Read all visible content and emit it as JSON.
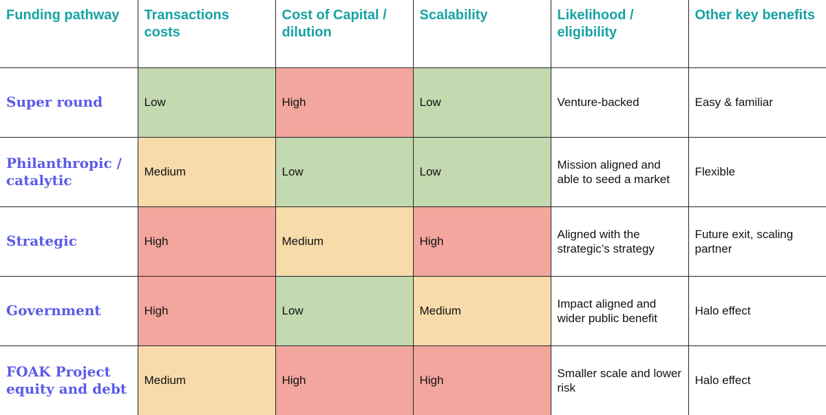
{
  "colors": {
    "header_text": "#17a2a2",
    "row_label_text": "#5b5be8",
    "low": "#c3d9b0",
    "medium": "#f7dbab",
    "high": "#f3a69d"
  },
  "headers": [
    "Funding pathway",
    "Transactions costs",
    "Cost of Capital / dilution",
    "Scalability",
    "Likelihood / eligibility",
    "Other key benefits"
  ],
  "rows": [
    {
      "label": "Super round",
      "transaction_costs": "Low",
      "cost_of_capital": "High",
      "scalability": "Low",
      "likelihood": "Venture-backed",
      "benefits": "Easy & familiar"
    },
    {
      "label": "Philanthropic / catalytic",
      "transaction_costs": "Medium",
      "cost_of_capital": "Low",
      "scalability": "Low",
      "likelihood": "Mission aligned and able to seed a market",
      "benefits": "Flexible"
    },
    {
      "label": "Strategic",
      "transaction_costs": "High",
      "cost_of_capital": "Medium",
      "scalability": "High",
      "likelihood": "Aligned with the strategic’s strategy",
      "benefits": "Future exit, scaling partner"
    },
    {
      "label": "Government",
      "transaction_costs": "High",
      "cost_of_capital": "Low",
      "scalability": "Medium",
      "likelihood": "Impact aligned and wider public benefit",
      "benefits": "Halo effect"
    },
    {
      "label": "FOAK Project equity and debt",
      "transaction_costs": "Medium",
      "cost_of_capital": "High",
      "scalability": "High",
      "likelihood": "Smaller scale and lower risk",
      "benefits": "Halo effect"
    }
  ]
}
